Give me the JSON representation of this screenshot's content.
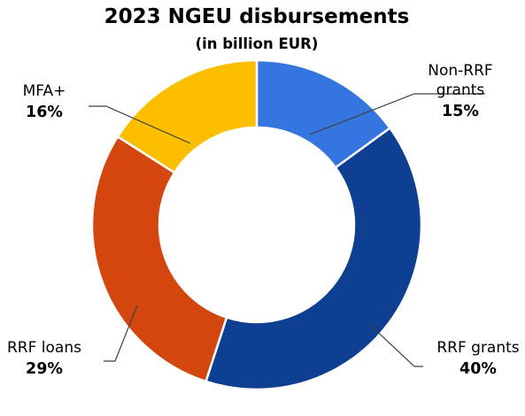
{
  "chart_data": {
    "type": "pie",
    "style": "donut",
    "title": "2023 NGEU disbursements",
    "subtitle": "(in billion EUR)",
    "unit": "%",
    "slices": [
      {
        "label_lines": [
          "Non-RRF",
          "grants"
        ],
        "value": 15,
        "value_label": "15%",
        "color": "#3575DF"
      },
      {
        "label_lines": [
          "RRF grants"
        ],
        "value": 40,
        "value_label": "40%",
        "color": "#0E3F91"
      },
      {
        "label_lines": [
          "RRF loans"
        ],
        "value": 29,
        "value_label": "29%",
        "color": "#D3470F"
      },
      {
        "label_lines": [
          "MFA+"
        ],
        "value": 16,
        "value_label": "16%",
        "color": "#FDBE00"
      }
    ]
  }
}
